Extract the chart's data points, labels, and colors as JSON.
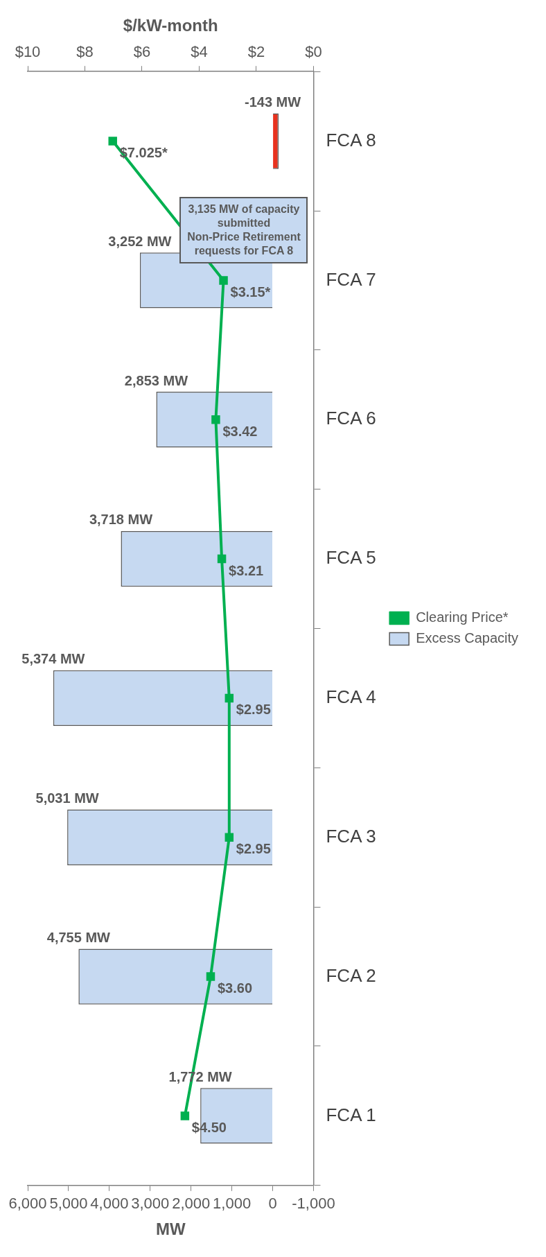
{
  "chart_data": {
    "type": "bar",
    "orientation": "horizontal",
    "categories": [
      "FCA 8",
      "FCA 7",
      "FCA 6",
      "FCA 5",
      "FCA 4",
      "FCA 3",
      "FCA 2",
      "FCA 1"
    ],
    "series": [
      {
        "name": "Excess Capacity",
        "color": "#c6d9f1",
        "colors": [
          "#e8321e",
          "#c6d9f1",
          "#c6d9f1",
          "#c6d9f1",
          "#c6d9f1",
          "#c6d9f1",
          "#c6d9f1",
          "#c6d9f1"
        ],
        "values": [
          -143,
          3252,
          2853,
          3718,
          5374,
          5031,
          4755,
          1772
        ],
        "value_labels": [
          "-143 MW",
          "3,252 MW",
          "2,853 MW",
          "3,718 MW",
          "5,374 MW",
          "5,031 MW",
          "4,755 MW",
          "1,772 MW"
        ]
      },
      {
        "name": "Clearing Price*",
        "type": "line",
        "axis": "x2",
        "color": "#00b050",
        "marker": "square",
        "values": [
          7.025,
          3.15,
          3.42,
          3.21,
          2.95,
          2.95,
          3.6,
          4.5
        ],
        "value_labels": [
          "$7.025*",
          "$3.15*",
          "$3.42",
          "$3.21",
          "$2.95",
          "$2.95",
          "$3.60",
          "$4.50"
        ]
      }
    ],
    "xlabel": "MW",
    "x2label": "$/kW-month",
    "xlim": [
      6000,
      -1000
    ],
    "xticks": [
      {
        "value": 6000,
        "label": "6,000"
      },
      {
        "value": 5000,
        "label": "5,000"
      },
      {
        "value": 4000,
        "label": "4,000"
      },
      {
        "value": 3000,
        "label": "3,000"
      },
      {
        "value": 2000,
        "label": "2,000"
      },
      {
        "value": 1000,
        "label": "1,000"
      },
      {
        "value": 0,
        "label": "0"
      },
      {
        "value": -1000,
        "label": "-1,000"
      }
    ],
    "x2lim": [
      10,
      0
    ],
    "x2ticks": [
      {
        "value": 10,
        "label": "$10"
      },
      {
        "value": 8,
        "label": "$8"
      },
      {
        "value": 6,
        "label": "$6"
      },
      {
        "value": 4,
        "label": "$4"
      },
      {
        "value": 2,
        "label": "$2"
      },
      {
        "value": 0,
        "label": "$0"
      }
    ],
    "annotations": [
      "3,135 MW of capacity submitted\nNon-Price Retirement requests for FCA 8"
    ],
    "grid": false,
    "legend": "right"
  }
}
